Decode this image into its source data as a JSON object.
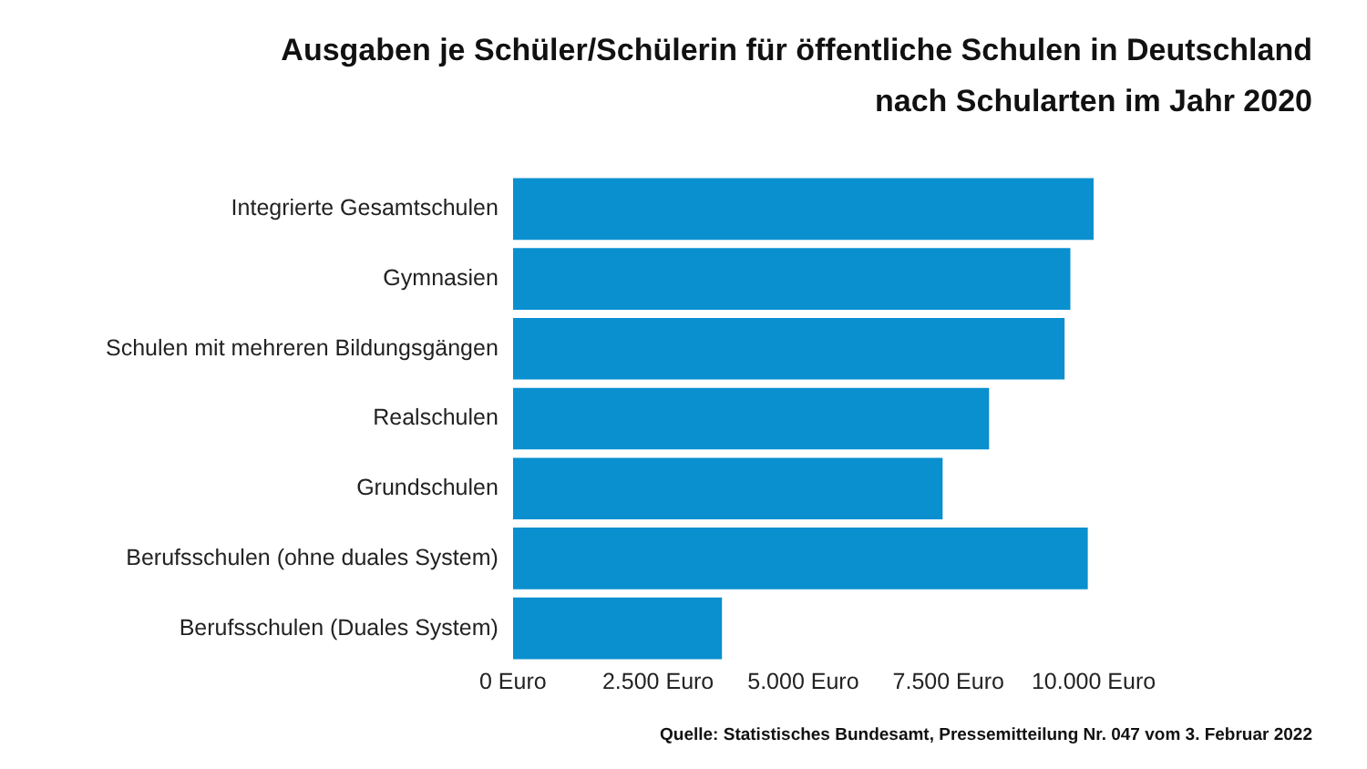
{
  "chart_data": {
    "type": "bar",
    "orientation": "horizontal",
    "title": "Ausgaben je Schüler/Schülerin für öffentliche Schulen in Deutschland nach Schularten im Jahr 2020",
    "categories": [
      "Integrierte Gesamtschulen",
      "Gymnasien",
      "Schulen mit mehreren Bildungsgängen",
      "Realschulen",
      "Grundschulen",
      "Berufsschulen (ohne duales System)",
      "Berufsschulen (Duales System)"
    ],
    "values": [
      10000,
      9600,
      9500,
      8200,
      7400,
      9900,
      3600
    ],
    "color": "#0a8fcf",
    "xlim": [
      0,
      10000
    ],
    "xticks": [
      {
        "value": 0,
        "label": "0 Euro"
      },
      {
        "value": 2500,
        "label": "2.500 Euro"
      },
      {
        "value": 5000,
        "label": "5.000 Euro"
      },
      {
        "value": 7500,
        "label": "7.500 Euro"
      },
      {
        "value": 10000,
        "label": "10.000 Euro"
      }
    ],
    "grid": false,
    "legend": false,
    "annotations": [
      "Quelle: Statistisches Bundesamt, Pressemitteilung Nr. 047 vom 3. Februar 2022"
    ]
  }
}
